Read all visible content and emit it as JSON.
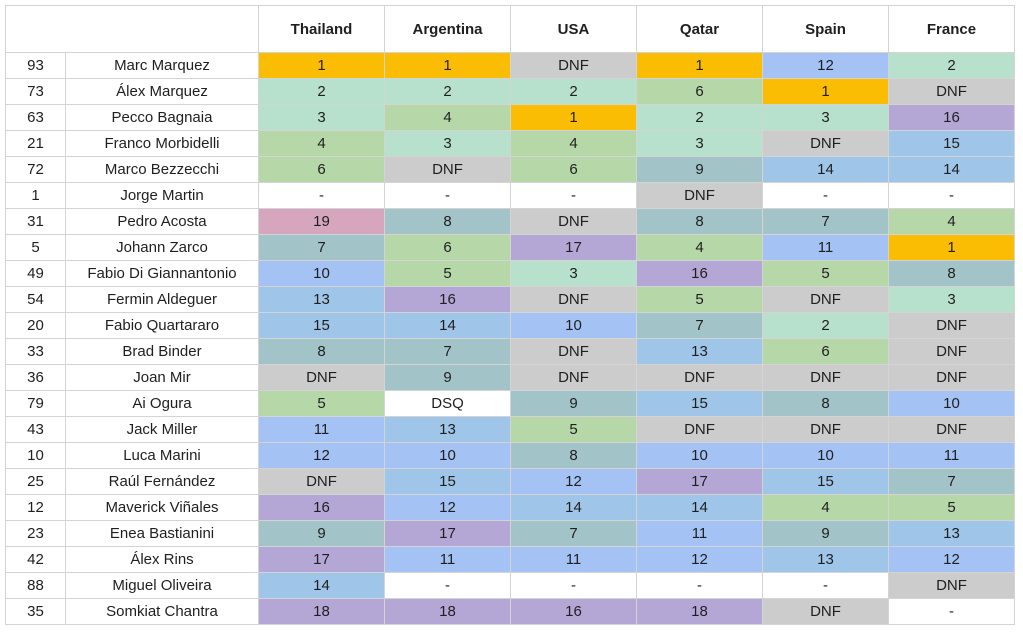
{
  "table": {
    "races": [
      "Thailand",
      "Argentina",
      "USA",
      "Qatar",
      "Spain",
      "France"
    ],
    "rows": [
      {
        "number": "93",
        "rider": "Marc Marquez",
        "results": [
          "1",
          "1",
          "DNF",
          "1",
          "12",
          "2"
        ]
      },
      {
        "number": "73",
        "rider": "Álex Marquez",
        "results": [
          "2",
          "2",
          "2",
          "6",
          "1",
          "DNF"
        ]
      },
      {
        "number": "63",
        "rider": "Pecco Bagnaia",
        "results": [
          "3",
          "4",
          "1",
          "2",
          "3",
          "16"
        ]
      },
      {
        "number": "21",
        "rider": "Franco Morbidelli",
        "results": [
          "4",
          "3",
          "4",
          "3",
          "DNF",
          "15"
        ]
      },
      {
        "number": "72",
        "rider": "Marco Bezzecchi",
        "results": [
          "6",
          "DNF",
          "6",
          "9",
          "14",
          "14"
        ]
      },
      {
        "number": "1",
        "rider": "Jorge Martin",
        "results": [
          "-",
          "-",
          "-",
          "DNF",
          "-",
          "-"
        ]
      },
      {
        "number": "31",
        "rider": "Pedro Acosta",
        "results": [
          "19",
          "8",
          "DNF",
          "8",
          "7",
          "4"
        ]
      },
      {
        "number": "5",
        "rider": "Johann Zarco",
        "results": [
          "7",
          "6",
          "17",
          "4",
          "11",
          "1"
        ]
      },
      {
        "number": "49",
        "rider": "Fabio Di Giannantonio",
        "results": [
          "10",
          "5",
          "3",
          "16",
          "5",
          "8"
        ]
      },
      {
        "number": "54",
        "rider": "Fermin Aldeguer",
        "results": [
          "13",
          "16",
          "DNF",
          "5",
          "DNF",
          "3"
        ]
      },
      {
        "number": "20",
        "rider": "Fabio Quartararo",
        "results": [
          "15",
          "14",
          "10",
          "7",
          "2",
          "DNF"
        ]
      },
      {
        "number": "33",
        "rider": "Brad Binder",
        "results": [
          "8",
          "7",
          "DNF",
          "13",
          "6",
          "DNF"
        ]
      },
      {
        "number": "36",
        "rider": "Joan Mir",
        "results": [
          "DNF",
          "9",
          "DNF",
          "DNF",
          "DNF",
          "DNF"
        ]
      },
      {
        "number": "79",
        "rider": "Ai Ogura",
        "results": [
          "5",
          "DSQ",
          "9",
          "15",
          "8",
          "10"
        ]
      },
      {
        "number": "43",
        "rider": "Jack Miller",
        "results": [
          "11",
          "13",
          "5",
          "DNF",
          "DNF",
          "DNF"
        ]
      },
      {
        "number": "10",
        "rider": "Luca Marini",
        "results": [
          "12",
          "10",
          "8",
          "10",
          "10",
          "11"
        ]
      },
      {
        "number": "25",
        "rider": "Raúl Fernández",
        "results": [
          "DNF",
          "15",
          "12",
          "17",
          "15",
          "7"
        ]
      },
      {
        "number": "12",
        "rider": "Maverick Viñales",
        "results": [
          "16",
          "12",
          "14",
          "14",
          "4",
          "5"
        ]
      },
      {
        "number": "23",
        "rider": "Enea Bastianini",
        "results": [
          "9",
          "17",
          "7",
          "11",
          "9",
          "13"
        ]
      },
      {
        "number": "42",
        "rider": "Álex Rins",
        "results": [
          "17",
          "11",
          "11",
          "12",
          "13",
          "12"
        ]
      },
      {
        "number": "88",
        "rider": "Miguel Oliveira",
        "results": [
          "14",
          "-",
          "-",
          "-",
          "-",
          "DNF"
        ]
      },
      {
        "number": "35",
        "rider": "Somkiat Chantra",
        "results": [
          "18",
          "18",
          "16",
          "18",
          "DNF",
          "-"
        ]
      }
    ]
  },
  "colors": {
    "1": "#fbbc04",
    "2": "#b7e1cd",
    "3": "#b7e1cd",
    "4": "#b6d7a8",
    "5": "#b6d7a8",
    "6": "#b6d7a8",
    "7": "#a2c4c9",
    "8": "#a2c4c9",
    "9": "#a2c4c9",
    "10": "#a4c2f4",
    "11": "#a4c2f4",
    "12": "#a4c2f4",
    "13": "#9fc5e8",
    "14": "#9fc5e8",
    "15": "#9fc5e8",
    "16": "#b4a7d6",
    "17": "#b4a7d6",
    "18": "#b4a7d6",
    "19": "#d5a6bd",
    "DNF": "#cccccc",
    "DSQ": "#ffffff",
    "-": "#ffffff"
  }
}
